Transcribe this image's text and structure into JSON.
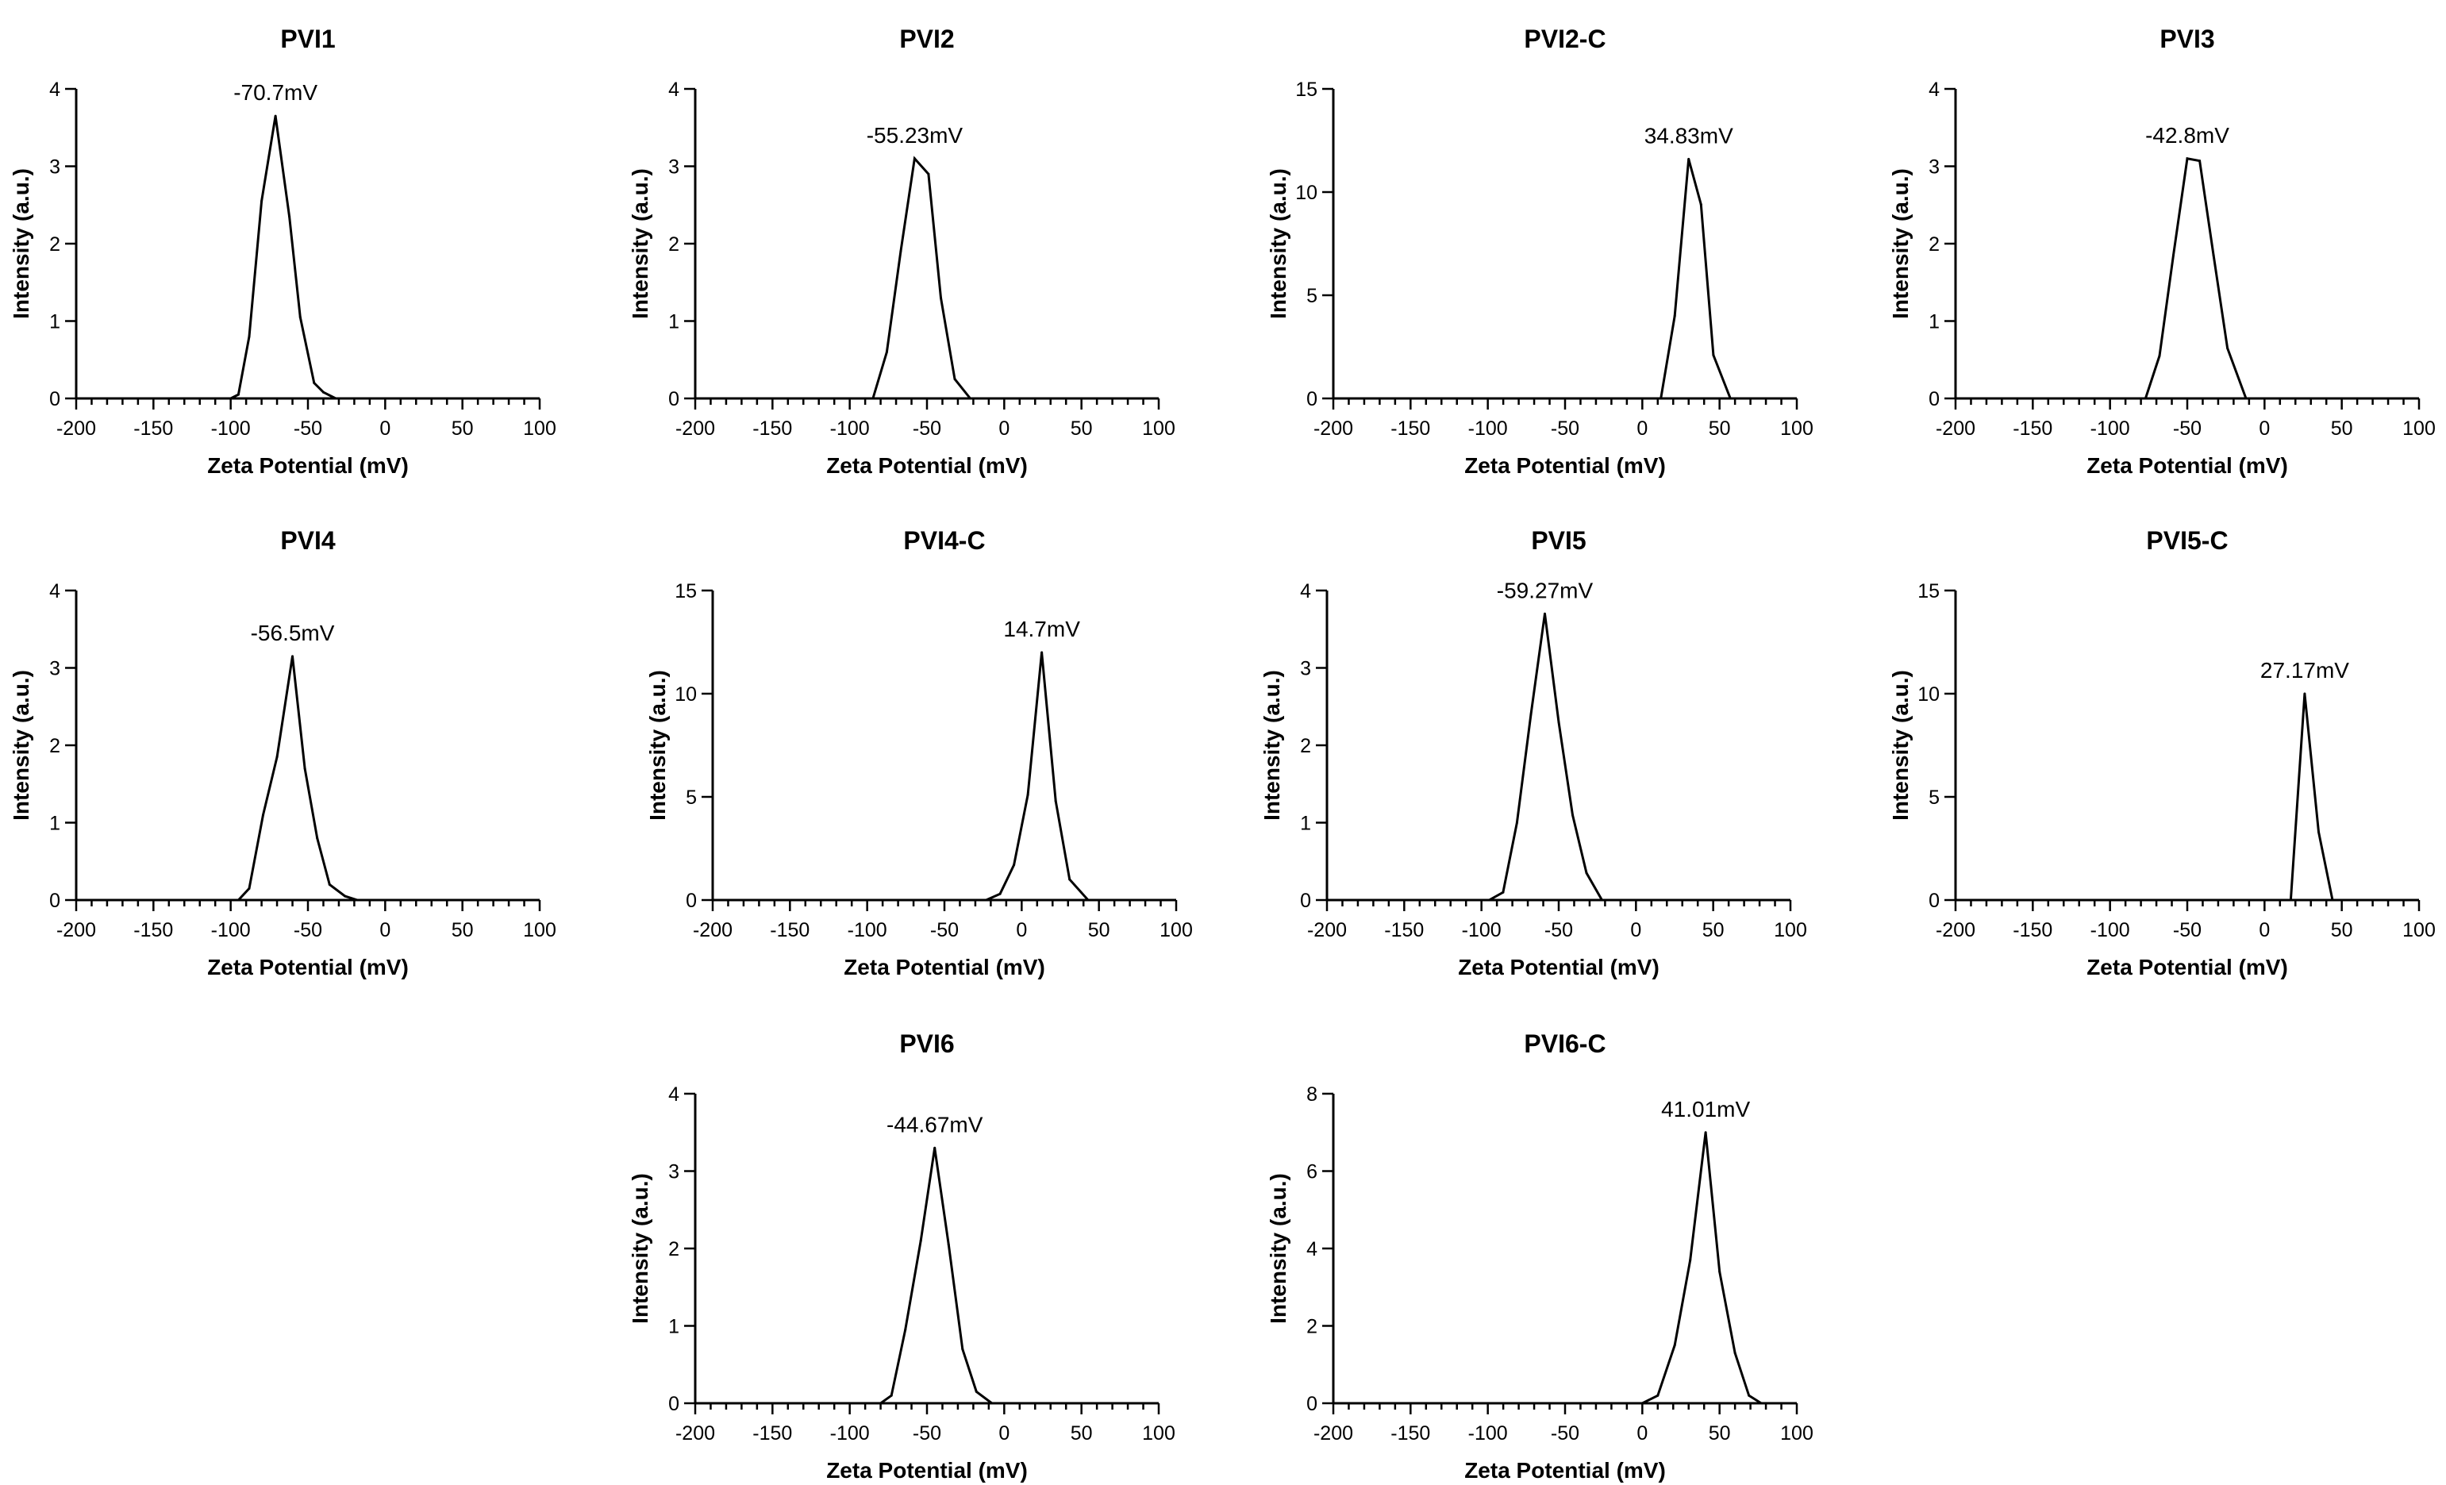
{
  "chart_data": [
    {
      "type": "line",
      "title": "PVI1",
      "xlabel": "Zeta Potential (mV)",
      "ylabel": "Intensity (a.u.)",
      "xlim": [
        -200,
        100
      ],
      "ylim": [
        0,
        4
      ],
      "yticks": [
        "0",
        "1",
        "2",
        "3",
        "4"
      ],
      "xticks": [
        "-200",
        "-150",
        "-100",
        "-50",
        "0",
        "50",
        "100"
      ],
      "annotation": "-70.7mV",
      "x": [
        -200,
        -100,
        -95,
        -88,
        -80,
        -71,
        -62,
        -55,
        -46,
        -40,
        -32
      ],
      "y": [
        0,
        0,
        0.05,
        0.8,
        2.55,
        3.65,
        2.35,
        1.05,
        0.2,
        0.08,
        0
      ]
    },
    {
      "type": "line",
      "title": "PVI2",
      "xlabel": "Zeta Potential (mV)",
      "ylabel": "Intensity (a.u.)",
      "xlim": [
        -200,
        100
      ],
      "ylim": [
        0,
        4
      ],
      "yticks": [
        "0",
        "1",
        "2",
        "3",
        "4"
      ],
      "xticks": [
        "-200",
        "-150",
        "-100",
        "-50",
        "0",
        "50",
        "100"
      ],
      "annotation": "-55.23mV",
      "x": [
        -200,
        -85,
        -76,
        -67,
        -58,
        -49,
        -41,
        -32,
        -22
      ],
      "y": [
        0,
        0,
        0.6,
        1.9,
        3.1,
        2.9,
        1.3,
        0.25,
        0
      ]
    },
    {
      "type": "line",
      "title": "PVI2-C",
      "xlabel": "Zeta Potential (mV)",
      "ylabel": "Intensity (a.u.)",
      "xlim": [
        -200,
        100
      ],
      "ylim": [
        0,
        15
      ],
      "yticks": [
        "0",
        "5",
        "10",
        "15"
      ],
      "xticks": [
        "-200",
        "-150",
        "-100",
        "-50",
        "0",
        "50",
        "100"
      ],
      "annotation": "34.83mV",
      "x": [
        -200,
        12,
        21,
        30,
        38,
        46,
        57
      ],
      "y": [
        0,
        0,
        4.0,
        11.6,
        9.4,
        2.1,
        0
      ]
    },
    {
      "type": "line",
      "title": "PVI3",
      "xlabel": "Zeta Potential (mV)",
      "ylabel": "Intensity (a.u.)",
      "xlim": [
        -200,
        100
      ],
      "ylim": [
        0,
        4
      ],
      "yticks": [
        "0",
        "1",
        "2",
        "3",
        "4"
      ],
      "xticks": [
        "-200",
        "-150",
        "-100",
        "-50",
        "0",
        "50",
        "100"
      ],
      "annotation": "-42.8mV",
      "x": [
        -200,
        -77,
        -68,
        -59,
        -50,
        -42,
        -33,
        -24,
        -12
      ],
      "y": [
        0,
        0,
        0.55,
        1.85,
        3.1,
        3.07,
        1.85,
        0.65,
        0
      ]
    },
    {
      "type": "line",
      "title": "PVI4",
      "xlabel": "Zeta Potential (mV)",
      "ylabel": "Intensity (a.u.)",
      "xlim": [
        -200,
        100
      ],
      "ylim": [
        0,
        4
      ],
      "yticks": [
        "0",
        "1",
        "2",
        "3",
        "4"
      ],
      "xticks": [
        "-200",
        "-150",
        "-100",
        "-50",
        "0",
        "50",
        "100"
      ],
      "annotation": "-56.5mV",
      "x": [
        -200,
        -95,
        -88,
        -79,
        -70,
        -60,
        -52,
        -44,
        -36,
        -26,
        -18
      ],
      "y": [
        0,
        0,
        0.15,
        1.1,
        1.85,
        3.15,
        1.7,
        0.8,
        0.2,
        0.05,
        0
      ]
    },
    {
      "type": "line",
      "title": "PVI4-C",
      "xlabel": "Zeta Potential (mV)",
      "ylabel": "Intensity (a.u.)",
      "xlim": [
        -200,
        100
      ],
      "ylim": [
        0,
        15
      ],
      "yticks": [
        "0",
        "5",
        "10",
        "15"
      ],
      "xticks": [
        "-200",
        "-150",
        "-100",
        "-50",
        "0",
        "50",
        "100"
      ],
      "annotation": "14.7mV",
      "x": [
        -200,
        -23,
        -14,
        -5,
        4,
        13,
        22,
        31,
        43
      ],
      "y": [
        0,
        0,
        0.3,
        1.7,
        5.1,
        12.0,
        4.8,
        1.0,
        0
      ]
    },
    {
      "type": "line",
      "title": "PVI5",
      "xlabel": "Zeta Potential (mV)",
      "ylabel": "Intensity (a.u.)",
      "xlim": [
        -200,
        100
      ],
      "ylim": [
        0,
        4
      ],
      "yticks": [
        "0",
        "1",
        "2",
        "3",
        "4"
      ],
      "xticks": [
        "-200",
        "-150",
        "-100",
        "-50",
        "0",
        "50",
        "100"
      ],
      "annotation": "-59.27mV",
      "x": [
        -200,
        -95,
        -86,
        -77,
        -68,
        -59,
        -50,
        -41,
        -32,
        -22
      ],
      "y": [
        0,
        0,
        0.1,
        1.0,
        2.4,
        3.7,
        2.3,
        1.1,
        0.35,
        0
      ]
    },
    {
      "type": "line",
      "title": "PVI5-C",
      "xlabel": "Zeta Potential (mV)",
      "ylabel": "Intensity (a.u.)",
      "xlim": [
        -200,
        100
      ],
      "ylim": [
        0,
        15
      ],
      "yticks": [
        "0",
        "5",
        "10",
        "15"
      ],
      "xticks": [
        "-200",
        "-150",
        "-100",
        "-50",
        "0",
        "50",
        "100"
      ],
      "annotation": "27.17mV",
      "x": [
        -200,
        17,
        26,
        35,
        44
      ],
      "y": [
        0,
        0,
        10.0,
        3.3,
        0
      ]
    },
    {
      "type": "line",
      "title": "PVI6",
      "xlabel": "Zeta Potential (mV)",
      "ylabel": "Intensity (a.u.)",
      "xlim": [
        -200,
        100
      ],
      "ylim": [
        0,
        4
      ],
      "yticks": [
        "0",
        "1",
        "2",
        "3",
        "4"
      ],
      "xticks": [
        "-200",
        "-150",
        "-100",
        "-50",
        "0",
        "50",
        "100"
      ],
      "annotation": "-44.67mV",
      "x": [
        -200,
        -80,
        -73,
        -64,
        -54,
        -45,
        -36,
        -27,
        -18,
        -8
      ],
      "y": [
        0,
        0,
        0.1,
        0.95,
        2.1,
        3.3,
        2.05,
        0.7,
        0.15,
        0
      ]
    },
    {
      "type": "line",
      "title": "PVI6-C",
      "xlabel": "Zeta Potential (mV)",
      "ylabel": "Intensity (a.u.)",
      "xlim": [
        -200,
        100
      ],
      "ylim": [
        0,
        8
      ],
      "yticks": [
        "0",
        "2",
        "4",
        "6",
        "8"
      ],
      "xticks": [
        "-200",
        "-150",
        "-100",
        "-50",
        "0",
        "50",
        "100"
      ],
      "annotation": "41.01mV",
      "x": [
        -200,
        0,
        10,
        21,
        31,
        41,
        50,
        60,
        69,
        77
      ],
      "y": [
        0,
        0,
        0.2,
        1.5,
        3.7,
        7.0,
        3.4,
        1.3,
        0.2,
        0
      ]
    }
  ]
}
